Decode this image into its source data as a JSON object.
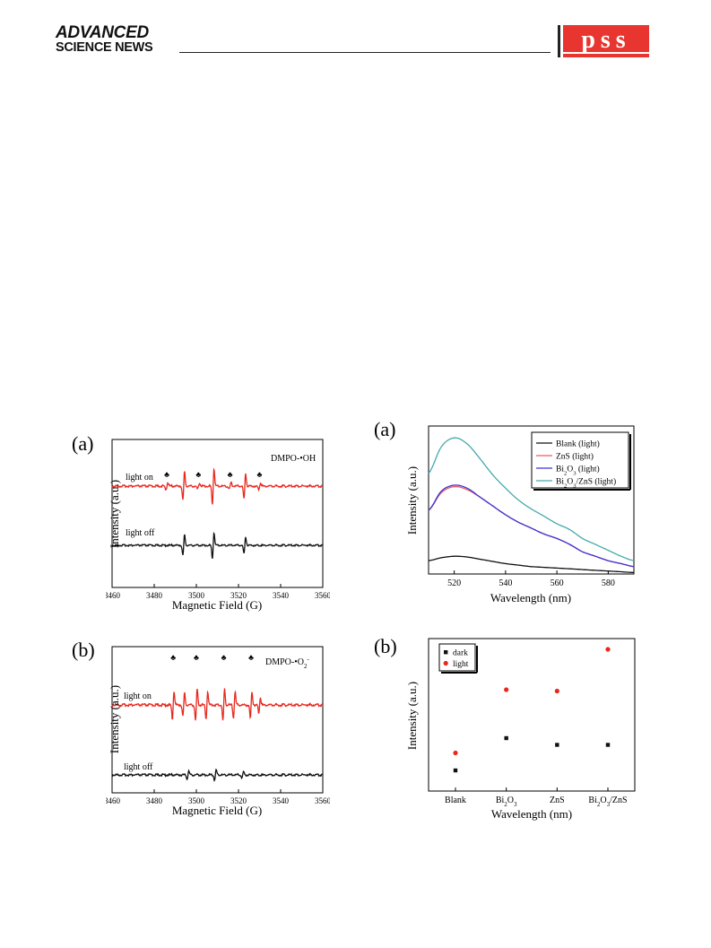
{
  "header": {
    "logo_line1": "ADVANCED",
    "logo_line2": "SCIENCE NEWS",
    "journal_logo": "pss",
    "journal_logo_color": "#e8352f"
  },
  "epr_panels": {
    "panel_a": {
      "label": "(a)",
      "species": "DMPO-•OH",
      "trace_on": "light on",
      "trace_off": "light off"
    },
    "panel_b": {
      "label": "(b)",
      "species": "DMPO-•O2-",
      "trace_on": "light on",
      "trace_off": "light off"
    }
  },
  "pl_panels": {
    "panel_a": {
      "label": "(a)"
    },
    "panel_b": {
      "label": "(b)"
    }
  },
  "colors": {
    "red": "#e8281e",
    "black": "#111111",
    "blue": "#3a34d8",
    "teal": "#45a9ad",
    "pink": "#ee5a5a"
  },
  "chart_data": [
    {
      "id": "epr-oh",
      "type": "line",
      "xlabel": "Magnetic Field (G)",
      "ylabel": "Intensity (a.u.)",
      "xlim": [
        3460,
        3560
      ],
      "xticks": [
        3460,
        3480,
        3500,
        3520,
        3540,
        3560
      ],
      "annotation": "DMPO-•OH",
      "marker_symbol": "♣",
      "marker_positions": [
        3486,
        3501,
        3516,
        3530
      ],
      "series": [
        {
          "name": "light on",
          "center_lines": [
            3494,
            3508,
            3523
          ],
          "amplitudes": [
            1.0,
            1.25,
            0.9
          ],
          "minor_lines": [
            3486,
            3501,
            3516,
            3530
          ],
          "minor_amplitude": 0.22
        },
        {
          "name": "light off",
          "center_lines": [
            3494,
            3508,
            3523
          ],
          "amplitudes": [
            0.8,
            1.0,
            0.65
          ]
        }
      ]
    },
    {
      "id": "epr-o2",
      "type": "line",
      "xlabel": "Magnetic Field (G)",
      "ylabel": "Intensity (a.u.)",
      "xlim": [
        3460,
        3560
      ],
      "xticks": [
        3460,
        3480,
        3500,
        3520,
        3540,
        3560
      ],
      "annotation": "DMPO-•O2-",
      "marker_symbol": "♣",
      "marker_positions": [
        3489,
        3500,
        3513,
        3526
      ],
      "series": [
        {
          "name": "light on",
          "center_lines": [
            3489,
            3494,
            3500,
            3505,
            3513,
            3518,
            3526,
            3530
          ],
          "amplitudes": [
            0.9,
            0.75,
            1.0,
            0.9,
            1.0,
            0.85,
            0.85,
            0.5
          ]
        },
        {
          "name": "light off",
          "center_lines": [
            3496,
            3509,
            3522
          ],
          "amplitudes": [
            0.55,
            0.7,
            0.45
          ]
        }
      ]
    },
    {
      "id": "pl-spectra",
      "type": "line",
      "xlabel": "Wavelength (nm)",
      "ylabel": "Intensity (a.u.)",
      "xlim": [
        510,
        590
      ],
      "xticks": [
        520,
        540,
        560,
        580
      ],
      "ylim": [
        0,
        100
      ],
      "legend_position": "top-right",
      "x": [
        510,
        515,
        520,
        525,
        530,
        535,
        540,
        545,
        550,
        555,
        560,
        565,
        570,
        575,
        580,
        585,
        590
      ],
      "series": [
        {
          "name": "Blank (light)",
          "color": "#111111",
          "values": [
            9,
            11,
            12,
            11.5,
            10,
            8.5,
            7,
            6,
            5,
            4.5,
            4,
            3.5,
            3,
            2.5,
            2,
            1.5,
            1
          ]
        },
        {
          "name": "ZnS    (light)",
          "color": "#ee5a5a",
          "values": [
            43,
            55,
            59,
            57,
            52,
            46,
            40,
            35,
            31,
            27,
            24,
            20,
            15,
            12,
            9,
            7,
            5
          ]
        },
        {
          "name": "Bi2O3  (light)",
          "color": "#3a34d8",
          "values": [
            43,
            56,
            60,
            58,
            52,
            46,
            40,
            35,
            31,
            27,
            24,
            20,
            15,
            12,
            9,
            7,
            5
          ]
        },
        {
          "name": "Bi2O3/ZnS (light)",
          "color": "#45a9ad",
          "values": [
            68,
            86,
            92,
            88,
            78,
            67,
            58,
            50,
            44,
            39,
            34,
            30,
            24,
            20,
            16,
            12,
            9
          ]
        }
      ]
    },
    {
      "id": "pl-scatter",
      "type": "scatter",
      "xlabel": "Wavelength (nm)",
      "ylabel": "Intensity (a.u.)",
      "categories": [
        "Blank",
        "Bi2O3",
        "ZnS",
        "Bi2O3/ZnS"
      ],
      "ylim": [
        0,
        100
      ],
      "legend_position": "top-left",
      "series": [
        {
          "name": "dark",
          "color": "#111111",
          "values": [
            10,
            34,
            29,
            29
          ]
        },
        {
          "name": "light",
          "color": "#e8281e",
          "values": [
            23,
            70,
            69,
            100
          ]
        }
      ]
    }
  ]
}
